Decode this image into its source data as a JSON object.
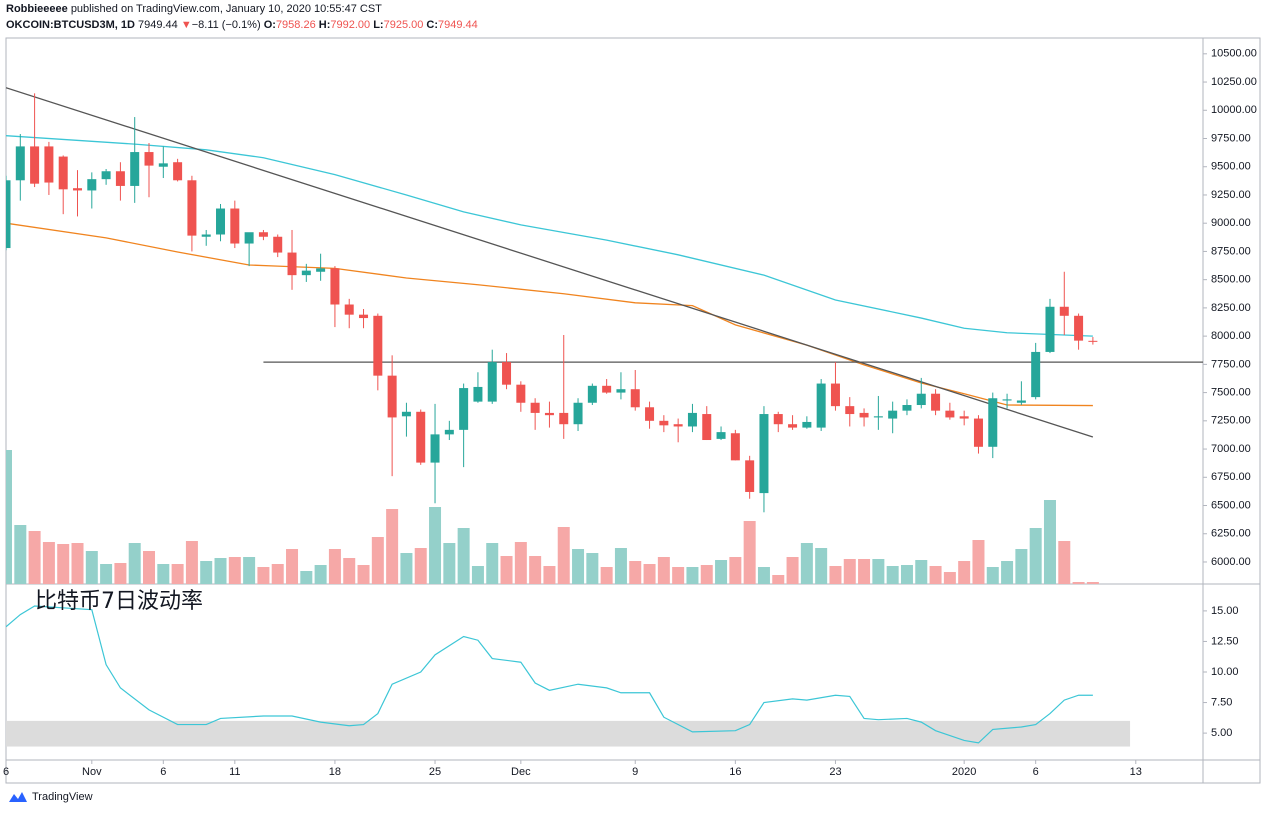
{
  "header": {
    "author": "Robbieeeee",
    "published": "published on TradingView.com, January 10, 2020 10:55:47 CST"
  },
  "legend": {
    "symbol": "OKCOIN:BTCUSD3M, 1D",
    "last": "7949.44",
    "arrow": "▼",
    "change": "−8.11 (−0.1%)",
    "o_label": "O:",
    "o": "7958.26",
    "h_label": "H:",
    "h": "7992.00",
    "l_label": "L:",
    "l": "7925.00",
    "c_label": "C:",
    "c": "7949.44"
  },
  "chart_data": [
    {
      "type": "candlestick",
      "open": [
        8780,
        9380,
        9680,
        9680,
        9590,
        9310,
        9290,
        9390,
        9460,
        9330,
        9630,
        9500,
        9540,
        9380,
        8880,
        8900,
        9130,
        8820,
        8920,
        8880,
        8740,
        8540,
        8570,
        8600,
        8280,
        8190,
        8180,
        7650,
        7290,
        7330,
        6880,
        7130,
        7170,
        7420,
        7420,
        7770,
        7570,
        7410,
        7320,
        7320,
        7220,
        7410,
        7560,
        7500,
        7530,
        7370,
        7250,
        7220,
        7200,
        7310,
        7090,
        7140,
        6900,
        6610,
        7310,
        7220,
        7190,
        7190,
        7580,
        7380,
        7320,
        7280,
        7270,
        7340,
        7390,
        7490,
        7340,
        7290,
        7270,
        7020,
        7430,
        7410,
        7460,
        7860,
        8260,
        8180,
        7958.26
      ],
      "high": [
        9420,
        9790,
        10150,
        9720,
        9600,
        9470,
        9450,
        9480,
        9540,
        9940,
        9710,
        9680,
        9570,
        9420,
        8940,
        9170,
        9200,
        8900,
        8940,
        8900,
        8940,
        8640,
        8730,
        8620,
        8330,
        8240,
        8200,
        7830,
        7410,
        7350,
        7400,
        7250,
        7580,
        7680,
        7880,
        7850,
        7600,
        7450,
        7420,
        8010,
        7450,
        7580,
        7620,
        7680,
        7700,
        7420,
        7300,
        7270,
        7400,
        7380,
        7200,
        7170,
        6940,
        7380,
        7330,
        7300,
        7290,
        7620,
        7770,
        7460,
        7360,
        7470,
        7420,
        7440,
        7630,
        7530,
        7410,
        7340,
        7300,
        7500,
        7490,
        7600,
        7940,
        8330,
        8570,
        8200,
        7992
      ],
      "low": [
        8760,
        9200,
        9320,
        9250,
        9080,
        9060,
        9130,
        9340,
        9200,
        9180,
        9230,
        9400,
        9370,
        8750,
        8800,
        8840,
        8780,
        8620,
        8850,
        8700,
        8410,
        8480,
        8490,
        8080,
        8070,
        8070,
        7520,
        6760,
        7110,
        6860,
        6520,
        7080,
        6840,
        7410,
        7400,
        7530,
        7330,
        7170,
        7190,
        7090,
        7160,
        7390,
        7490,
        7440,
        7340,
        7180,
        7150,
        7060,
        7150,
        7080,
        7080,
        6900,
        6560,
        6440,
        7150,
        7170,
        7180,
        7160,
        7340,
        7200,
        7200,
        7170,
        7140,
        7300,
        7360,
        7300,
        7260,
        7210,
        6960,
        6920,
        7360,
        7390,
        7440,
        7850,
        8010,
        7880,
        7925
      ],
      "close": [
        9380,
        9680,
        9350,
        9360,
        9300,
        9290,
        9390,
        9460,
        9330,
        9630,
        9510,
        9530,
        9380,
        8890,
        8900,
        9130,
        8820,
        8920,
        8880,
        8740,
        8540,
        8580,
        8600,
        8280,
        8190,
        8160,
        7650,
        7280,
        7330,
        6880,
        7130,
        7170,
        7540,
        7550,
        7770,
        7570,
        7410,
        7320,
        7300,
        7220,
        7410,
        7560,
        7500,
        7530,
        7370,
        7250,
        7210,
        7200,
        7320,
        7080,
        7150,
        6900,
        6620,
        7310,
        7220,
        7190,
        7240,
        7580,
        7380,
        7310,
        7280,
        7290,
        7340,
        7390,
        7490,
        7340,
        7280,
        7270,
        7020,
        7450,
        7440,
        7430,
        7860,
        8260,
        8180,
        7960,
        7949.44
      ],
      "colors": {
        "up": "#26a69a",
        "down": "#ef5350"
      },
      "volume": [
        134,
        59,
        53,
        42,
        40,
        41,
        33,
        20,
        21,
        41,
        33,
        20,
        20,
        43,
        23,
        26,
        27,
        27,
        17,
        20,
        35,
        13,
        19,
        35,
        26,
        19,
        47,
        75,
        31,
        36,
        77,
        41,
        56,
        18,
        41,
        28,
        42,
        28,
        18,
        57,
        35,
        31,
        17,
        36,
        23,
        20,
        27,
        17,
        17,
        19,
        24,
        27,
        63,
        17,
        9,
        27,
        41,
        36,
        18,
        25,
        25,
        25,
        18,
        19,
        24,
        18,
        12,
        23,
        44,
        17,
        23,
        35,
        56,
        84,
        43,
        2,
        2
      ],
      "volume_colors": {
        "up": "#94d0ca",
        "down": "#f6a8a7"
      },
      "volume_lim": [
        0,
        150
      ],
      "lines": [
        {
          "color": "#3cc6d6",
          "x": [
            0,
            9,
            14,
            18,
            23,
            28,
            32,
            36,
            42,
            47,
            53,
            58,
            64,
            67,
            70,
            76
          ],
          "values": [
            9775,
            9700,
            9650,
            9580,
            9430,
            9250,
            9100,
            8985,
            8850,
            8720,
            8540,
            8320,
            8160,
            8070,
            8030,
            8000
          ]
        },
        {
          "color": "#f0841f",
          "x": [
            0,
            7,
            12,
            17,
            19,
            23,
            28,
            33,
            39,
            44,
            48,
            51,
            56,
            60,
            64,
            67,
            70,
            76
          ],
          "values": [
            9000,
            8870,
            8745,
            8630,
            8620,
            8600,
            8515,
            8455,
            8375,
            8295,
            8270,
            8100,
            7920,
            7745,
            7585,
            7490,
            7390,
            7385
          ]
        },
        {
          "color": "#555555",
          "x": [
            0,
            76
          ],
          "values": [
            10200,
            7107
          ]
        },
        {
          "color": "#555555",
          "x": [
            18,
            83.7
          ],
          "values": [
            7770,
            7770
          ]
        }
      ],
      "xlim": [
        0,
        83.7
      ],
      "xticks": [
        {
          "value": 0,
          "label": "6"
        },
        {
          "value": 6,
          "label": "Nov"
        },
        {
          "value": 11,
          "label": "6"
        },
        {
          "value": 16,
          "label": "11"
        },
        {
          "value": 23,
          "label": "18"
        },
        {
          "value": 30,
          "label": "25"
        },
        {
          "value": 36,
          "label": "Dec"
        },
        {
          "value": 44,
          "label": "9"
        },
        {
          "value": 51,
          "label": "16"
        },
        {
          "value": 58,
          "label": "23"
        },
        {
          "value": 67,
          "label": "2020"
        },
        {
          "value": 72,
          "label": "6"
        },
        {
          "value": 79,
          "label": "13"
        }
      ],
      "ylim": [
        5805,
        10640
      ],
      "yticks": [
        {
          "value": 6000,
          "label": "6000.00"
        },
        {
          "value": 6250,
          "label": "6250.00"
        },
        {
          "value": 6500,
          "label": "6500.00"
        },
        {
          "value": 6750,
          "label": "6750.00"
        },
        {
          "value": 7000,
          "label": "7000.00"
        },
        {
          "value": 7250,
          "label": "7250.00"
        },
        {
          "value": 7500,
          "label": "7500.00"
        },
        {
          "value": 7750,
          "label": "7750.00"
        },
        {
          "value": 8000,
          "label": "8000.00"
        },
        {
          "value": 8250,
          "label": "8250.00"
        },
        {
          "value": 8500,
          "label": "8500.00"
        },
        {
          "value": 8750,
          "label": "8750.00"
        },
        {
          "value": 9000,
          "label": "9000.00"
        },
        {
          "value": 9250,
          "label": "9250.00"
        },
        {
          "value": 9500,
          "label": "9500.00"
        },
        {
          "value": 9750,
          "label": "9750.00"
        },
        {
          "value": 10000,
          "label": "10000.00"
        },
        {
          "value": 10250,
          "label": "10250.00"
        },
        {
          "value": 10500,
          "label": "10500.00"
        }
      ]
    },
    {
      "type": "line",
      "title": "比特币7日波动率",
      "color": "#3cc6d6",
      "x": [
        0,
        1,
        2,
        6,
        7,
        8,
        10,
        12,
        14,
        15,
        18,
        20,
        22,
        24,
        25,
        26,
        27,
        29,
        30,
        32,
        33,
        34,
        36,
        37,
        38,
        40,
        42,
        43,
        45,
        46,
        48,
        51,
        52,
        53,
        55,
        56,
        58,
        59,
        60,
        61,
        63,
        64,
        65,
        67,
        68,
        69,
        71,
        72,
        73,
        74,
        75,
        76
      ],
      "values": [
        13.7,
        14.7,
        15.4,
        15.1,
        10.6,
        8.7,
        6.9,
        5.7,
        5.7,
        6.2,
        6.4,
        6.4,
        5.9,
        5.6,
        5.7,
        6.6,
        9.0,
        10.0,
        11.4,
        12.9,
        12.6,
        11.1,
        10.8,
        9.1,
        8.5,
        9.0,
        8.7,
        8.3,
        8.3,
        6.3,
        5.1,
        5.2,
        5.7,
        7.5,
        7.8,
        7.7,
        8.1,
        8.0,
        6.2,
        6.1,
        6.2,
        5.9,
        5.2,
        4.4,
        4.2,
        5.3,
        5.5,
        5.7,
        6.6,
        7.7,
        8.1,
        8.1
      ],
      "band": {
        "x": [
          0,
          78.6
        ],
        "y": [
          3.9,
          6.0
        ],
        "color": "#dcdcdc"
      },
      "ylim": [
        2.8,
        17.2
      ],
      "yticks": [
        {
          "value": 5,
          "label": "5.00"
        },
        {
          "value": 7.5,
          "label": "7.50"
        },
        {
          "value": 10,
          "label": "10.00"
        },
        {
          "value": 12.5,
          "label": "12.50"
        },
        {
          "value": 15,
          "label": "15.00"
        }
      ]
    }
  ],
  "footer": {
    "brand": "TradingView"
  }
}
